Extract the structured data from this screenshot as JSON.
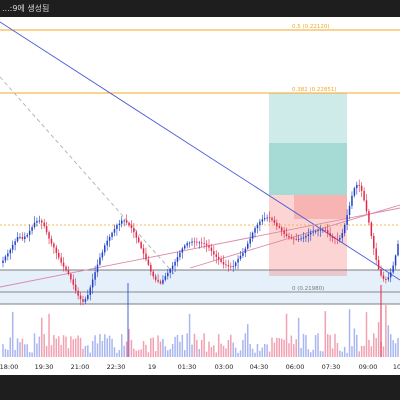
{
  "window": {
    "caption": "...:9에 생성됨"
  },
  "chart_data": {
    "type": "candlestick",
    "fib_levels": [
      {
        "ratio": 0.5,
        "label": "0.5 (0.22120)",
        "color": "#f5a623"
      },
      {
        "ratio": 0.382,
        "label": "0.382 (0.22851)",
        "color": "#f5a623"
      },
      {
        "ratio": 0,
        "label": "0 (0.21980)",
        "color": "#8a8a8a"
      }
    ],
    "time_labels": [
      "18:00",
      "19:30",
      "21:00",
      "22:30",
      "19",
      "01:30",
      "03:00",
      "04:30",
      "06:00",
      "07:30",
      "09:00",
      "10"
    ],
    "closes": [
      53.0,
      55.0,
      56.5,
      58.3,
      60.6,
      62.4,
      64.5,
      64.5,
      63.5,
      64.7,
      65.5,
      67.5,
      69.3,
      71.5,
      72.3,
      72.5,
      71.5,
      69.8,
      66.8,
      63.7,
      61.3,
      59.4,
      56.7,
      54.5,
      52.0,
      50.0,
      48.5,
      46.5,
      43.8,
      41.2,
      38.2,
      35.9,
      34.1,
      32.9,
      34.2,
      36.2,
      39.9,
      43.7,
      47.3,
      51.0,
      54.5,
      57.0,
      60.4,
      62.7,
      64.5,
      66.6,
      68.4,
      70.3,
      71.0,
      72.5,
      72.5,
      71.5,
      70.2,
      68.9,
      66.8,
      64.2,
      62.0,
      59.0,
      56.4,
      53.5,
      50.9,
      47.6,
      45.3,
      43.6,
      42.8,
      41.8,
      43.6,
      45.4,
      47.0,
      48.9,
      50.5,
      52.4,
      54.7,
      56.9,
      58.9,
      60.3,
      61.5,
      61.7,
      62.3,
      62.2,
      61.8,
      61.8,
      61.5,
      61.2,
      60.4,
      59.3,
      57.6,
      56.0,
      54.8,
      53.7,
      52.3,
      51.1,
      50.8,
      50.2,
      50.0,
      50.3,
      52.0,
      53.8,
      55.3,
      56.7,
      58.8,
      61.3,
      63.7,
      66.6,
      68.8,
      70.4,
      72.0,
      73.1,
      73.7,
      74.0,
      73.7,
      72.8,
      71.4,
      69.8,
      69.1,
      67.6,
      66.0,
      65.0,
      64.3,
      63.8,
      63.4,
      63.3,
      63.5,
      63.8,
      64.3,
      65.0,
      65.8,
      66.6,
      67.1,
      67.3,
      67.8,
      68.0,
      68.0,
      67.8,
      66.5,
      64.9,
      64.0,
      63.5,
      63.2,
      64.0,
      66.4,
      70.4,
      75.2,
      79.7,
      84.6,
      88.3,
      89.9,
      89.5,
      87.0,
      82.4,
      77.1,
      71.5,
      65.0,
      58.9,
      53.3,
      48.8,
      45.7,
      44.0,
      43.8,
      44.8,
      47.2,
      50.6,
      55.5,
      61.1
    ],
    "trend_lines": [
      {
        "color": "#4a5bd4",
        "style": "solid"
      },
      {
        "color": "#b0b0b0",
        "style": "dashed"
      },
      {
        "color": "#d98aa8",
        "style": "solid"
      },
      {
        "color": "#d98aa8",
        "style": "solid"
      }
    ],
    "position_box": {
      "profit_color": "#26a69a",
      "loss_color": "#ef5350"
    }
  }
}
